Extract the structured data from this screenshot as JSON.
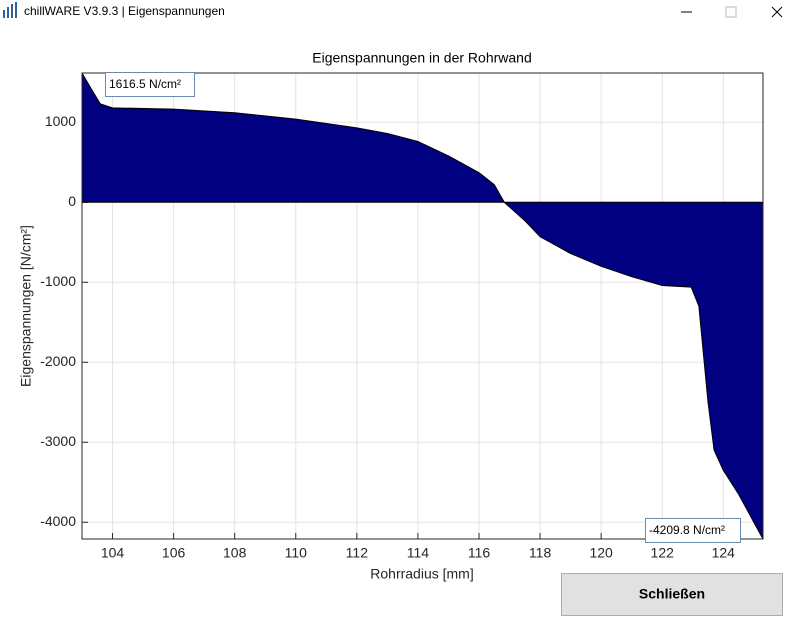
{
  "window": {
    "title": "chillWARE V3.9.3 | Eigenspannungen"
  },
  "chart_data": {
    "type": "area",
    "title": "Eigenspannungen in der Rohrwand",
    "x_label": "Rohrradius [mm]",
    "y_label": "Eigenspannungen [N/cm²]",
    "x": [
      103,
      103.3,
      103.6,
      104,
      106,
      108,
      110,
      112,
      113,
      114,
      115,
      116,
      116.5,
      116.83,
      117.5,
      118,
      119,
      120,
      121,
      122,
      122.95,
      123.2,
      123.5,
      123.7,
      124,
      124.5,
      125,
      125.3
    ],
    "values": [
      1616.5,
      1420,
      1230,
      1180,
      1165,
      1120,
      1040,
      930,
      860,
      760,
      580,
      370,
      220,
      0,
      -230,
      -430,
      -640,
      -800,
      -930,
      -1040,
      -1060,
      -1300,
      -2500,
      -3100,
      -3350,
      -3650,
      -4000,
      -4209.8
    ],
    "color": "#000080",
    "xlim": [
      103,
      125.3
    ],
    "ylim": [
      -4209.8,
      1616.5
    ],
    "xticks": [
      104,
      106,
      108,
      110,
      112,
      114,
      116,
      118,
      120,
      122,
      124
    ],
    "yticks": [
      -4000,
      -3000,
      -2000,
      -1000,
      0,
      1000
    ],
    "grid": true,
    "annotations": [
      "1616.5 N/cm²",
      "-4209.8 N/cm²"
    ]
  },
  "button": {
    "label": "Schließen"
  }
}
